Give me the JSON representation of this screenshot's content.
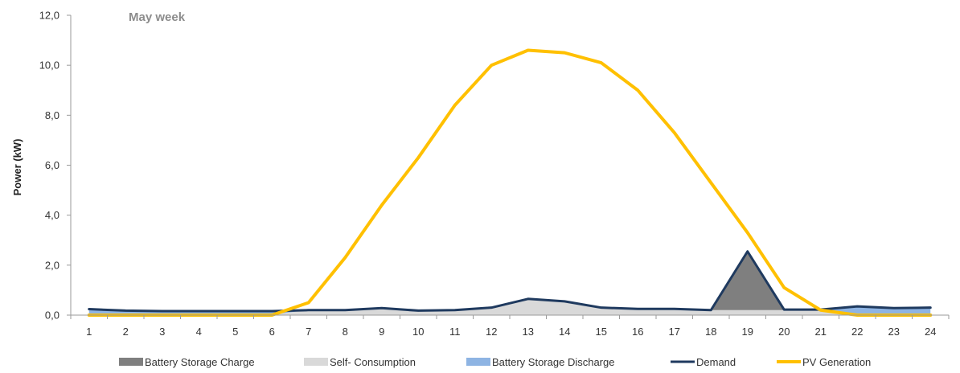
{
  "chart_data": {
    "type": "area",
    "title": "May week",
    "xlabel": "",
    "ylabel": "Power (kW)",
    "ylim": [
      0,
      12
    ],
    "yticks": [
      "0,0",
      "2,0",
      "4,0",
      "6,0",
      "8,0",
      "10,0",
      "12,0"
    ],
    "categories": [
      "1",
      "2",
      "3",
      "4",
      "5",
      "6",
      "7",
      "8",
      "9",
      "10",
      "11",
      "12",
      "13",
      "14",
      "15",
      "16",
      "17",
      "18",
      "19",
      "20",
      "21",
      "22",
      "23",
      "24"
    ],
    "grid": false,
    "legend_position": "bottom",
    "series": [
      {
        "name": "Battery Storage Charge",
        "kind": "area",
        "color": "#7f7f7f",
        "values": [
          0,
          0,
          0,
          0,
          0,
          0,
          0,
          0,
          0,
          0,
          0,
          0,
          0,
          0,
          0,
          0,
          0,
          0,
          2.35,
          0,
          0,
          0,
          0,
          0
        ]
      },
      {
        "name": "Self- Consumption",
        "kind": "area",
        "color": "#d9d9d9",
        "values": [
          0.02,
          0.02,
          0.02,
          0.02,
          0.02,
          0.02,
          0.2,
          0.2,
          0.28,
          0.18,
          0.2,
          0.3,
          0.65,
          0.55,
          0.3,
          0.25,
          0.25,
          0.2,
          0.2,
          0.2,
          0.2,
          0,
          0,
          0
        ]
      },
      {
        "name": "Battery Storage Discharge",
        "kind": "area",
        "color": "#8eb4e3",
        "values": [
          0.22,
          0.16,
          0.14,
          0.14,
          0.14,
          0.14,
          0,
          0,
          0,
          0,
          0,
          0,
          0,
          0,
          0,
          0,
          0,
          0,
          0,
          0,
          0,
          0.35,
          0.28,
          0.3
        ]
      },
      {
        "name": "Demand",
        "kind": "line",
        "color": "#1f3a5f",
        "values": [
          0.24,
          0.18,
          0.16,
          0.16,
          0.16,
          0.16,
          0.2,
          0.2,
          0.28,
          0.18,
          0.2,
          0.3,
          0.65,
          0.55,
          0.3,
          0.25,
          0.25,
          0.2,
          2.55,
          0.22,
          0.22,
          0.35,
          0.28,
          0.3
        ]
      },
      {
        "name": "PV Generation",
        "kind": "line",
        "color": "#ffc000",
        "values": [
          0,
          0,
          0,
          0,
          0,
          0,
          0.5,
          2.3,
          4.4,
          6.3,
          8.4,
          10.0,
          10.6,
          10.5,
          10.1,
          9.0,
          7.3,
          5.3,
          3.3,
          1.1,
          0.2,
          0,
          0,
          0
        ]
      }
    ]
  }
}
